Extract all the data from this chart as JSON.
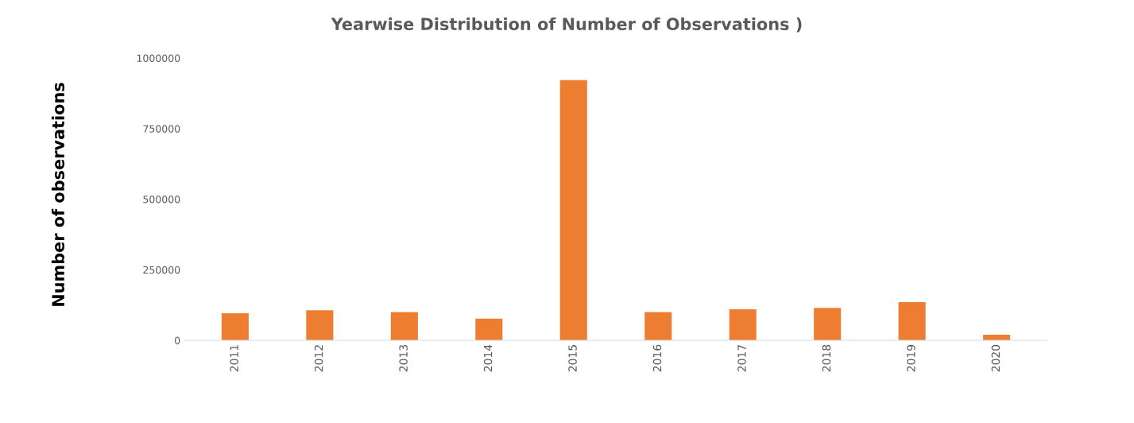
{
  "chart_data": {
    "type": "bar",
    "title": "Yearwise Distribution of Number of Observations )",
    "ylabel": "Number of observations",
    "categories": [
      "2011",
      "2012",
      "2013",
      "2014",
      "2015",
      "2016",
      "2017",
      "2018",
      "2019",
      "2020"
    ],
    "values": [
      96000,
      106000,
      100000,
      77000,
      922000,
      100000,
      110000,
      115000,
      135000,
      20000
    ],
    "color": "#ed7d31",
    "ylim": [
      0,
      1000000
    ],
    "yticks": [
      0,
      250000,
      500000,
      750000,
      1000000
    ],
    "grid": false
  }
}
